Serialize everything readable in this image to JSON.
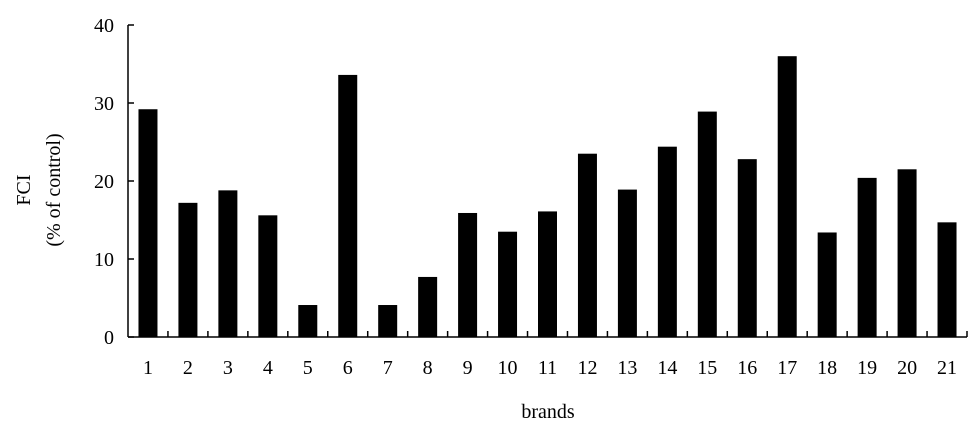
{
  "chart_data": {
    "type": "bar",
    "categories": [
      "1",
      "2",
      "3",
      "4",
      "5",
      "6",
      "7",
      "8",
      "9",
      "10",
      "11",
      "12",
      "13",
      "14",
      "15",
      "16",
      "17",
      "18",
      "19",
      "20",
      "21"
    ],
    "values": [
      29.2,
      17.2,
      18.8,
      15.6,
      4.1,
      33.6,
      4.1,
      7.7,
      15.9,
      13.5,
      16.1,
      23.5,
      18.9,
      24.4,
      28.9,
      22.8,
      36.0,
      13.4,
      20.4,
      21.5,
      14.7
    ],
    "ylim": [
      0,
      40
    ],
    "yticks": [
      "0",
      "10",
      "20",
      "30",
      "40"
    ],
    "xlabel": "brands",
    "ylabel_line1": "FCI",
    "ylabel_line2": "(% of control)",
    "bar_color": "#000000",
    "grid": false,
    "legend": false
  }
}
